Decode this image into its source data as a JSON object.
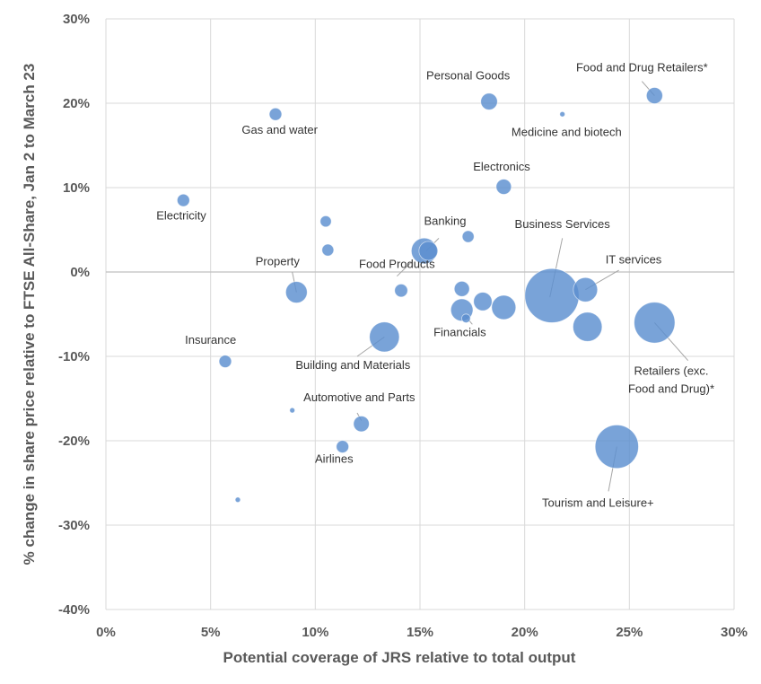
{
  "chart_data": {
    "type": "scatter",
    "title": "",
    "xlabel": "Potential coverage of JRS relative to total output",
    "ylabel": "% change in share price relative to FTSE All-Share, Jan 2 to March 23",
    "xlim": [
      0,
      30
    ],
    "ylim": [
      -40,
      30
    ],
    "x_ticks": [
      0,
      5,
      10,
      15,
      20,
      25,
      30
    ],
    "y_ticks": [
      -40,
      -30,
      -20,
      -10,
      0,
      10,
      20,
      30
    ],
    "x_tick_labels": [
      "0%",
      "5%",
      "10%",
      "15%",
      "20%",
      "25%",
      "30%"
    ],
    "y_tick_labels": [
      "-40%",
      "-30%",
      "-20%",
      "-10%",
      "0%",
      "10%",
      "20%",
      "30%"
    ],
    "grid": true,
    "legend": "none",
    "colors": {
      "bubble": "#5b8fd0",
      "grid": "#d9d9d9",
      "text": "#595959"
    },
    "points": [
      {
        "x": 3.7,
        "y": 8.5,
        "size": 1.0,
        "label": "Electricity"
      },
      {
        "x": 8.1,
        "y": 18.7,
        "size": 1.0,
        "label": "Gas and water"
      },
      {
        "x": 10.5,
        "y": 6.0,
        "size": 0.8
      },
      {
        "x": 10.6,
        "y": 2.6,
        "size": 0.9
      },
      {
        "x": 9.1,
        "y": -2.4,
        "size": 3.0,
        "label": "Property"
      },
      {
        "x": 5.7,
        "y": -10.6,
        "size": 1.0,
        "label": "Insurance"
      },
      {
        "x": 8.9,
        "y": -16.4,
        "size": 0.3
      },
      {
        "x": 6.3,
        "y": -27.0,
        "size": 0.3
      },
      {
        "x": 12.2,
        "y": -18.0,
        "size": 1.6,
        "label": "Automotive and Parts"
      },
      {
        "x": 11.3,
        "y": -20.7,
        "size": 1.0,
        "label": "Airlines"
      },
      {
        "x": 13.3,
        "y": -7.7,
        "size": 5.8,
        "label": "Building and Materials"
      },
      {
        "x": 14.1,
        "y": -2.2,
        "size": 1.1,
        "label": "Food Products"
      },
      {
        "x": 15.2,
        "y": 2.5,
        "size": 4.3,
        "label": "Banking"
      },
      {
        "x": 15.4,
        "y": 2.5,
        "size": 2.3
      },
      {
        "x": 17.3,
        "y": 4.2,
        "size": 0.9
      },
      {
        "x": 17.0,
        "y": -2.0,
        "size": 1.5
      },
      {
        "x": 17.0,
        "y": -4.5,
        "size": 3.2,
        "label": "Financials"
      },
      {
        "x": 17.2,
        "y": -5.5,
        "size": 0.5
      },
      {
        "x": 18.0,
        "y": -3.5,
        "size": 2.2
      },
      {
        "x": 19.0,
        "y": -4.2,
        "size": 3.8
      },
      {
        "x": 18.3,
        "y": 20.2,
        "size": 1.8,
        "label": "Personal Goods"
      },
      {
        "x": 19.0,
        "y": 10.1,
        "size": 1.5,
        "label": "Electronics"
      },
      {
        "x": 21.8,
        "y": 18.7,
        "size": 0.3,
        "label": "Medicine and biotech"
      },
      {
        "x": 26.2,
        "y": 20.9,
        "size": 1.7,
        "label": "Food and Drug Retailers*"
      },
      {
        "x": 21.3,
        "y": -2.8,
        "size": 19.0,
        "label": "Business Services"
      },
      {
        "x": 22.9,
        "y": -2.1,
        "size": 3.8,
        "label": "IT services"
      },
      {
        "x": 23.0,
        "y": -6.5,
        "size": 5.5
      },
      {
        "x": 26.2,
        "y": -6.0,
        "size": 10.8,
        "label": "Retailers (exc. Food and Drug)*"
      },
      {
        "x": 24.4,
        "y": -20.7,
        "size": 12.2,
        "label": "Tourism and Leisure+"
      }
    ],
    "annotations": [
      {
        "text": "Electricity",
        "x": 3.6,
        "y": 6.2
      },
      {
        "text": "Gas and water",
        "x": 8.3,
        "y": 16.4
      },
      {
        "text": "Property",
        "x": 8.2,
        "y": 0.8
      },
      {
        "text": "Insurance",
        "x": 5.0,
        "y": -8.5
      },
      {
        "text": "Automotive and Parts",
        "x": 12.1,
        "y": -15.3
      },
      {
        "text": "Airlines",
        "x": 10.9,
        "y": -22.6
      },
      {
        "text": "Building and Materials",
        "x": 11.8,
        "y": -11.5
      },
      {
        "text": "Food Products",
        "x": 13.9,
        "y": 0.5
      },
      {
        "text": "Banking",
        "x": 16.2,
        "y": 5.6
      },
      {
        "text": "Financials",
        "x": 16.9,
        "y": -7.6
      },
      {
        "text": "Personal Goods",
        "x": 17.3,
        "y": 22.8
      },
      {
        "text": "Electronics",
        "x": 18.9,
        "y": 12.0
      },
      {
        "text": "Medicine and biotech",
        "x": 22.0,
        "y": 16.1
      },
      {
        "text": "Food and Drug Retailers*",
        "x": 25.6,
        "y": 23.8
      },
      {
        "text": "Business Services",
        "x": 21.8,
        "y": 5.2
      },
      {
        "text": "IT services",
        "x": 25.2,
        "y": 1.0
      },
      {
        "text": "Retailers (exc.",
        "x": 27.0,
        "y": -12.2
      },
      {
        "text": "Food and Drug)*",
        "x": 27.0,
        "y": -14.3
      },
      {
        "text": "Tourism and Leisure+",
        "x": 23.5,
        "y": -27.8
      }
    ],
    "leaders": [
      {
        "from": [
          14.6,
          1.2
        ],
        "to": [
          13.9,
          -0.5
        ]
      },
      {
        "from": [
          15.9,
          4.0
        ],
        "to": [
          15.3,
          2.5
        ]
      },
      {
        "from": [
          17.5,
          -6.2
        ],
        "to": [
          17.1,
          -5.0
        ]
      },
      {
        "from": [
          12.0,
          -16.7
        ],
        "to": [
          12.2,
          -17.6
        ]
      },
      {
        "from": [
          12.0,
          -10.0
        ],
        "to": [
          13.3,
          -7.7
        ]
      },
      {
        "from": [
          21.8,
          4.0
        ],
        "to": [
          21.2,
          -3.0
        ]
      },
      {
        "from": [
          24.5,
          0.2
        ],
        "to": [
          22.9,
          -2.1
        ]
      },
      {
        "from": [
          27.8,
          -10.5
        ],
        "to": [
          26.2,
          -6.0
        ]
      },
      {
        "from": [
          24.0,
          -26.0
        ],
        "to": [
          24.4,
          -20.7
        ]
      },
      {
        "from": [
          25.6,
          22.6
        ],
        "to": [
          26.2,
          20.9
        ]
      },
      {
        "from": [
          8.9,
          0.0
        ],
        "to": [
          9.1,
          -2.4
        ]
      }
    ]
  }
}
